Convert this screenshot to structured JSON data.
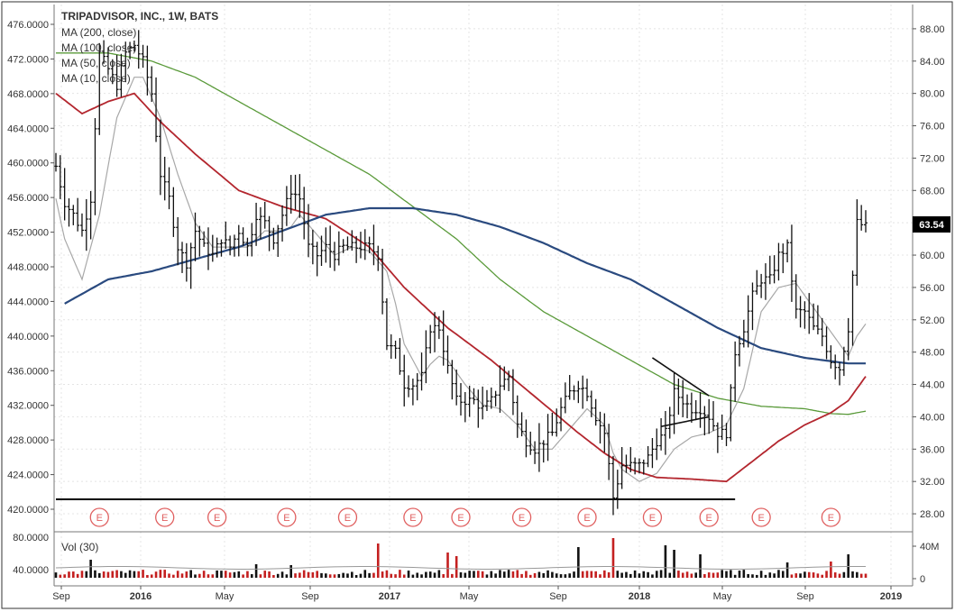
{
  "chart_data": {
    "type": "line",
    "title": "TRIPADVISOR, INC., 1W, BATS",
    "legend": [
      "MA (200, close)",
      "MA (100, close)",
      "MA (50, close)",
      "MA (10, close)"
    ],
    "volume_label": "Vol (30)",
    "last_price_label": "63.54",
    "earnings_marker": "E",
    "x_tick_labels": [
      "Sep",
      "2016",
      "May",
      "Sep",
      "2017",
      "May",
      "Sep",
      "2018",
      "May",
      "Sep",
      "2019"
    ],
    "left_axis_labels": [
      "476.0000",
      "472.0000",
      "468.0000",
      "464.0000",
      "460.0000",
      "456.0000",
      "452.0000",
      "448.0000",
      "444.0000",
      "440.0000",
      "436.0000",
      "432.0000",
      "428.0000",
      "424.0000",
      "420.0000"
    ],
    "right_axis_labels": [
      "88.00",
      "84.00",
      "80.00",
      "76.00",
      "72.00",
      "68.00",
      "64.00",
      "60.00",
      "56.00",
      "52.00",
      "48.00",
      "44.00",
      "40.00",
      "36.00",
      "32.00",
      "28.00"
    ],
    "volume_left_labels": [
      "80.0000",
      "40.0000"
    ],
    "volume_right_labels": [
      "40M",
      "0"
    ],
    "price_range": [
      26.0,
      91.0
    ],
    "x_range_weeks": [
      0,
      186
    ],
    "earnings_weeks": [
      10,
      25,
      37,
      53,
      67,
      82,
      93,
      107,
      122,
      137,
      150,
      162,
      178
    ],
    "support_level": 29.8,
    "support_weeks": [
      0,
      156
    ],
    "triangle": {
      "upper": [
        [
          137,
          47.3
        ],
        [
          150,
          42.6
        ]
      ],
      "lower": [
        [
          139,
          38.8
        ],
        [
          150,
          40.0
        ]
      ]
    },
    "colors": {
      "ma200": "#2a4a7f",
      "ma100": "#5a9a3a",
      "ma50": "#b3262e",
      "ma10": "#a8a8a8",
      "bars": "#111111",
      "vol_up": "#111111",
      "vol_down": "#c42020",
      "earn": "#e06060"
    },
    "anchors": {
      "close": [
        [
          0,
          71
        ],
        [
          2,
          66.5
        ],
        [
          4,
          65
        ],
        [
          6,
          63
        ],
        [
          8,
          67
        ],
        [
          10,
          85
        ],
        [
          12,
          83
        ],
        [
          14,
          81
        ],
        [
          16,
          85
        ],
        [
          18,
          86
        ],
        [
          20,
          84
        ],
        [
          22,
          80
        ],
        [
          24,
          70
        ],
        [
          26,
          67
        ],
        [
          28,
          61
        ],
        [
          30,
          59
        ],
        [
          32,
          63
        ],
        [
          34,
          61
        ],
        [
          36,
          60
        ],
        [
          38,
          62
        ],
        [
          40,
          61
        ],
        [
          42,
          63
        ],
        [
          44,
          61
        ],
        [
          46,
          65
        ],
        [
          48,
          64
        ],
        [
          50,
          62
        ],
        [
          52,
          65
        ],
        [
          54,
          68
        ],
        [
          56,
          67
        ],
        [
          58,
          61
        ],
        [
          60,
          60
        ],
        [
          62,
          61
        ],
        [
          64,
          60
        ],
        [
          66,
          61
        ],
        [
          68,
          61
        ],
        [
          70,
          61
        ],
        [
          72,
          61
        ],
        [
          74,
          60
        ],
        [
          76,
          49
        ],
        [
          78,
          48
        ],
        [
          80,
          44
        ],
        [
          82,
          44
        ],
        [
          84,
          45
        ],
        [
          86,
          51
        ],
        [
          88,
          51
        ],
        [
          90,
          46
        ],
        [
          92,
          42
        ],
        [
          94,
          42
        ],
        [
          96,
          42
        ],
        [
          98,
          41
        ],
        [
          100,
          42
        ],
        [
          102,
          44
        ],
        [
          104,
          45
        ],
        [
          106,
          39
        ],
        [
          108,
          37
        ],
        [
          110,
          36
        ],
        [
          112,
          37
        ],
        [
          114,
          38
        ],
        [
          116,
          41
        ],
        [
          118,
          43
        ],
        [
          120,
          44
        ],
        [
          122,
          43
        ],
        [
          124,
          40
        ],
        [
          126,
          38
        ],
        [
          128,
          30
        ],
        [
          130,
          34
        ],
        [
          132,
          34
        ],
        [
          134,
          34
        ],
        [
          136,
          35
        ],
        [
          138,
          37
        ],
        [
          140,
          38
        ],
        [
          142,
          43
        ],
        [
          144,
          42
        ],
        [
          146,
          41
        ],
        [
          148,
          41
        ],
        [
          150,
          40
        ],
        [
          152,
          38
        ],
        [
          154,
          38
        ],
        [
          156,
          48
        ],
        [
          158,
          51
        ],
        [
          160,
          55
        ],
        [
          162,
          57
        ],
        [
          164,
          57
        ],
        [
          166,
          60
        ],
        [
          168,
          61
        ],
        [
          170,
          53
        ],
        [
          172,
          53
        ],
        [
          174,
          51
        ],
        [
          176,
          50
        ],
        [
          178,
          47
        ],
        [
          180,
          46
        ],
        [
          182,
          51
        ],
        [
          184,
          64
        ],
        [
          186,
          63.5
        ]
      ],
      "ma200": [
        [
          2,
          54
        ],
        [
          12,
          57
        ],
        [
          22,
          58
        ],
        [
          32,
          59.5
        ],
        [
          42,
          61
        ],
        [
          52,
          63
        ],
        [
          62,
          65
        ],
        [
          72,
          65.8
        ],
        [
          82,
          65.8
        ],
        [
          92,
          65
        ],
        [
          102,
          63.5
        ],
        [
          112,
          61.5
        ],
        [
          122,
          59
        ],
        [
          132,
          57
        ],
        [
          142,
          54
        ],
        [
          152,
          51
        ],
        [
          162,
          48.5
        ],
        [
          172,
          47.3
        ],
        [
          182,
          46.6
        ],
        [
          186,
          46.6
        ]
      ],
      "ma100": [
        [
          0,
          85
        ],
        [
          12,
          85
        ],
        [
          22,
          84
        ],
        [
          32,
          82
        ],
        [
          42,
          79
        ],
        [
          52,
          76
        ],
        [
          62,
          73
        ],
        [
          72,
          70
        ],
        [
          82,
          66
        ],
        [
          92,
          62
        ],
        [
          102,
          57
        ],
        [
          112,
          53
        ],
        [
          122,
          50
        ],
        [
          132,
          47
        ],
        [
          142,
          44
        ],
        [
          152,
          42.3
        ],
        [
          162,
          41.3
        ],
        [
          172,
          41
        ],
        [
          178,
          40.4
        ],
        [
          182,
          40.3
        ],
        [
          186,
          40.7
        ]
      ],
      "ma50": [
        [
          0,
          80
        ],
        [
          6,
          77.5
        ],
        [
          12,
          79
        ],
        [
          18,
          80
        ],
        [
          24,
          76.5
        ],
        [
          32,
          72.5
        ],
        [
          42,
          68
        ],
        [
          52,
          66
        ],
        [
          62,
          64.5
        ],
        [
          72,
          61
        ],
        [
          80,
          56
        ],
        [
          90,
          51
        ],
        [
          100,
          47
        ],
        [
          110,
          42.5
        ],
        [
          120,
          38
        ],
        [
          126,
          35.5
        ],
        [
          132,
          33.5
        ],
        [
          138,
          32.5
        ],
        [
          146,
          32.3
        ],
        [
          154,
          32
        ],
        [
          160,
          34.5
        ],
        [
          166,
          37
        ],
        [
          172,
          39
        ],
        [
          178,
          40.5
        ],
        [
          182,
          42
        ],
        [
          186,
          45
        ]
      ],
      "ma10": [
        [
          0,
          67
        ],
        [
          2,
          62
        ],
        [
          6,
          57
        ],
        [
          10,
          65
        ],
        [
          14,
          77
        ],
        [
          18,
          82
        ],
        [
          20,
          82
        ],
        [
          24,
          77
        ],
        [
          28,
          70
        ],
        [
          32,
          64
        ],
        [
          36,
          61
        ],
        [
          40,
          61
        ],
        [
          44,
          61
        ],
        [
          48,
          63
        ],
        [
          52,
          63
        ],
        [
          54,
          63.5
        ],
        [
          56,
          65
        ],
        [
          60,
          62.5
        ],
        [
          64,
          60
        ],
        [
          68,
          61
        ],
        [
          72,
          60.5
        ],
        [
          76,
          58
        ],
        [
          78,
          54
        ],
        [
          80,
          49
        ],
        [
          84,
          45
        ],
        [
          86,
          46.5
        ],
        [
          88,
          47.5
        ],
        [
          90,
          47
        ],
        [
          94,
          44
        ],
        [
          98,
          41.5
        ],
        [
          102,
          41
        ],
        [
          106,
          39
        ],
        [
          110,
          36
        ],
        [
          114,
          36
        ],
        [
          118,
          38.5
        ],
        [
          122,
          41
        ],
        [
          126,
          39
        ],
        [
          128,
          35.5
        ],
        [
          130,
          33.5
        ],
        [
          134,
          32
        ],
        [
          138,
          33
        ],
        [
          142,
          36
        ],
        [
          146,
          37.5
        ],
        [
          150,
          38
        ],
        [
          154,
          39
        ],
        [
          158,
          43.5
        ],
        [
          162,
          53
        ],
        [
          166,
          56
        ],
        [
          170,
          56.5
        ],
        [
          174,
          53.5
        ],
        [
          178,
          50.5
        ],
        [
          182,
          47.5
        ],
        [
          184,
          50
        ],
        [
          186,
          51.5
        ]
      ]
    }
  }
}
